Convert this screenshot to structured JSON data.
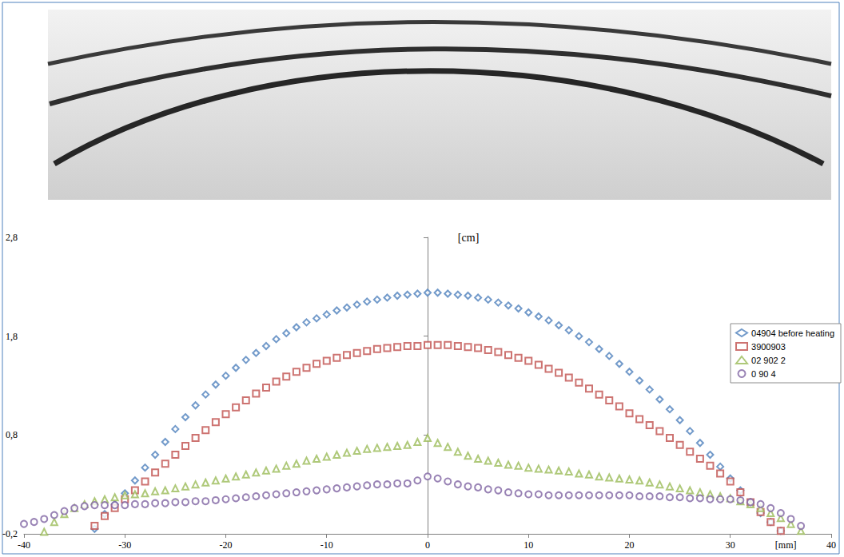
{
  "chart_data": {
    "type": "scatter",
    "x_label": "[mm]",
    "y_label": "[cm]",
    "xlim": [
      -40,
      40
    ],
    "xticks": [
      -40,
      -30,
      -20,
      -10,
      0,
      10,
      20,
      30,
      40
    ],
    "ylim": [
      -0.2,
      2.8
    ],
    "yticks": [
      {
        "value": -0.2,
        "label": "-0,2"
      },
      {
        "value": 0.8,
        "label": "0,8"
      },
      {
        "value": 1.8,
        "label": "1,8"
      },
      {
        "value": 2.8,
        "label": "2,8"
      }
    ],
    "grid": false,
    "legend": "right",
    "series": [
      {
        "name": "04904 before heating",
        "color": "#4f81bd",
        "marker": "diamond",
        "x": [
          -33,
          -32,
          -31,
          -30,
          -29,
          -28,
          -27,
          -26,
          -25,
          -24,
          -23,
          -22,
          -21,
          -20,
          -19,
          -18,
          -17,
          -16,
          -15,
          -14,
          -13,
          -12,
          -11,
          -10,
          -9,
          -8,
          -7,
          -6,
          -5,
          -4,
          -3,
          -2,
          -1,
          0,
          1,
          2,
          3,
          4,
          5,
          6,
          7,
          8,
          9,
          10,
          11,
          12,
          13,
          14,
          15,
          16,
          17,
          18,
          19,
          20,
          21,
          22,
          23,
          24,
          25,
          26,
          27,
          28,
          29,
          30,
          31,
          32,
          33,
          34,
          35
        ],
        "values": [
          -0.15,
          0.0,
          0.1,
          0.21,
          0.34,
          0.47,
          0.6,
          0.73,
          0.86,
          0.98,
          1.1,
          1.21,
          1.31,
          1.4,
          1.48,
          1.56,
          1.63,
          1.7,
          1.77,
          1.83,
          1.89,
          1.94,
          1.98,
          2.02,
          2.06,
          2.09,
          2.12,
          2.15,
          2.17,
          2.19,
          2.21,
          2.22,
          2.23,
          2.24,
          2.24,
          2.23,
          2.22,
          2.21,
          2.19,
          2.17,
          2.14,
          2.11,
          2.08,
          2.04,
          2.0,
          1.96,
          1.91,
          1.86,
          1.8,
          1.74,
          1.67,
          1.6,
          1.52,
          1.44,
          1.35,
          1.26,
          1.16,
          1.06,
          0.95,
          0.84,
          0.72,
          0.6,
          0.48,
          0.36,
          0.24,
          0.12,
          0.01,
          -0.08,
          -0.17
        ]
      },
      {
        "name": "3900903",
        "color": "#c0504d",
        "marker": "square",
        "x": [
          -33,
          -32,
          -31,
          -30,
          -29,
          -28,
          -27,
          -26,
          -25,
          -24,
          -23,
          -22,
          -21,
          -20,
          -19,
          -18,
          -17,
          -16,
          -15,
          -14,
          -13,
          -12,
          -11,
          -10,
          -9,
          -8,
          -7,
          -6,
          -5,
          -4,
          -3,
          -2,
          -1,
          0,
          1,
          2,
          3,
          4,
          5,
          6,
          7,
          8,
          9,
          10,
          11,
          12,
          13,
          14,
          15,
          16,
          17,
          18,
          19,
          20,
          21,
          22,
          23,
          24,
          25,
          26,
          27,
          28,
          29,
          30,
          31,
          32,
          33,
          34,
          35
        ],
        "values": [
          -0.12,
          -0.02,
          0.06,
          0.15,
          0.24,
          0.33,
          0.42,
          0.51,
          0.6,
          0.69,
          0.77,
          0.85,
          0.93,
          1.01,
          1.08,
          1.15,
          1.22,
          1.28,
          1.34,
          1.39,
          1.44,
          1.48,
          1.52,
          1.55,
          1.58,
          1.61,
          1.63,
          1.65,
          1.67,
          1.68,
          1.69,
          1.7,
          1.7,
          1.71,
          1.71,
          1.71,
          1.7,
          1.69,
          1.68,
          1.66,
          1.64,
          1.61,
          1.58,
          1.55,
          1.51,
          1.47,
          1.43,
          1.38,
          1.33,
          1.27,
          1.21,
          1.15,
          1.09,
          1.02,
          0.96,
          0.9,
          0.84,
          0.77,
          0.7,
          0.63,
          0.56,
          0.49,
          0.41,
          0.33,
          0.22,
          0.12,
          0.02,
          -0.08,
          -0.17
        ]
      },
      {
        "name": "02 902 2",
        "color": "#9bbb59",
        "marker": "triangle",
        "x": [
          -38,
          -37,
          -36,
          -35,
          -34,
          -33,
          -32,
          -31,
          -30,
          -29,
          -28,
          -27,
          -26,
          -25,
          -24,
          -23,
          -22,
          -21,
          -20,
          -19,
          -18,
          -17,
          -16,
          -15,
          -14,
          -13,
          -12,
          -11,
          -10,
          -9,
          -8,
          -7,
          -6,
          -5,
          -4,
          -3,
          -2,
          -1,
          0,
          1,
          2,
          3,
          4,
          5,
          6,
          7,
          8,
          9,
          10,
          11,
          12,
          13,
          14,
          15,
          16,
          17,
          18,
          19,
          20,
          21,
          22,
          23,
          24,
          25,
          26,
          27,
          28,
          29,
          30,
          31,
          32,
          33,
          34,
          35,
          36,
          37
        ],
        "values": [
          -0.18,
          -0.08,
          0.0,
          0.06,
          0.1,
          0.13,
          0.15,
          0.17,
          0.19,
          0.2,
          0.21,
          0.23,
          0.24,
          0.26,
          0.28,
          0.3,
          0.32,
          0.34,
          0.36,
          0.38,
          0.4,
          0.42,
          0.44,
          0.46,
          0.49,
          0.51,
          0.54,
          0.56,
          0.58,
          0.6,
          0.62,
          0.64,
          0.66,
          0.67,
          0.68,
          0.69,
          0.7,
          0.73,
          0.77,
          0.72,
          0.68,
          0.63,
          0.59,
          0.56,
          0.54,
          0.52,
          0.5,
          0.49,
          0.47,
          0.46,
          0.45,
          0.44,
          0.43,
          0.41,
          0.4,
          0.38,
          0.37,
          0.36,
          0.35,
          0.34,
          0.32,
          0.3,
          0.28,
          0.26,
          0.24,
          0.22,
          0.2,
          0.18,
          0.16,
          0.13,
          0.1,
          0.06,
          0.01,
          -0.04,
          -0.1,
          -0.17
        ]
      },
      {
        "name": "0 90 4",
        "color": "#8064a2",
        "marker": "circle",
        "x": [
          -40,
          -39,
          -38,
          -37,
          -36,
          -35,
          -34,
          -33,
          -32,
          -31,
          -30,
          -29,
          -28,
          -27,
          -26,
          -25,
          -24,
          -23,
          -22,
          -21,
          -20,
          -19,
          -18,
          -17,
          -16,
          -15,
          -14,
          -13,
          -12,
          -11,
          -10,
          -9,
          -8,
          -7,
          -6,
          -5,
          -4,
          -3,
          -2,
          -1,
          0,
          1,
          2,
          3,
          4,
          5,
          6,
          7,
          8,
          9,
          10,
          11,
          12,
          13,
          14,
          15,
          16,
          17,
          18,
          19,
          20,
          21,
          22,
          23,
          24,
          25,
          26,
          27,
          28,
          29,
          30,
          31,
          32,
          33,
          34,
          35,
          36,
          37
        ],
        "values": [
          -0.1,
          -0.08,
          -0.05,
          -0.01,
          0.03,
          0.06,
          0.08,
          0.09,
          0.09,
          0.09,
          0.09,
          0.1,
          0.1,
          0.11,
          0.11,
          0.12,
          0.12,
          0.13,
          0.13,
          0.14,
          0.15,
          0.16,
          0.17,
          0.18,
          0.19,
          0.2,
          0.21,
          0.22,
          0.23,
          0.24,
          0.25,
          0.26,
          0.27,
          0.28,
          0.29,
          0.3,
          0.3,
          0.31,
          0.31,
          0.34,
          0.38,
          0.36,
          0.33,
          0.3,
          0.28,
          0.27,
          0.25,
          0.24,
          0.22,
          0.21,
          0.2,
          0.2,
          0.19,
          0.19,
          0.19,
          0.19,
          0.19,
          0.19,
          0.19,
          0.19,
          0.19,
          0.18,
          0.18,
          0.18,
          0.17,
          0.17,
          0.16,
          0.16,
          0.15,
          0.15,
          0.15,
          0.14,
          0.12,
          0.1,
          0.06,
          0.01,
          -0.05,
          -0.12
        ]
      }
    ]
  }
}
